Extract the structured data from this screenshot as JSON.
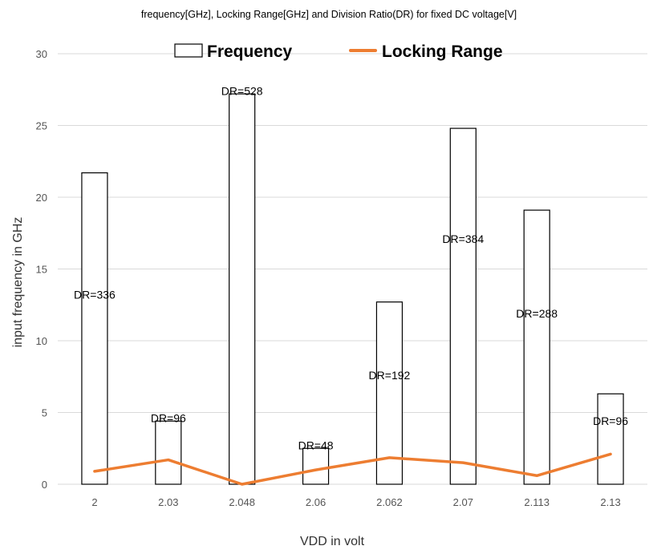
{
  "chart_data": {
    "type": "bar",
    "title": "frequency[GHz], Locking Range[GHz] and Division Ratio(DR) for fixed DC voltage[V]",
    "xlabel": "VDD in volt",
    "ylabel": "input frequency in GHz",
    "ylim": [
      0,
      30
    ],
    "yticks": [
      0,
      5,
      10,
      15,
      20,
      25,
      30
    ],
    "grid": true,
    "legend_position": "top",
    "categories": [
      "2",
      "2.03",
      "2.048",
      "2.06",
      "2.062",
      "2.07",
      "2.113",
      "2.13"
    ],
    "series": [
      {
        "name": "Frequency",
        "type": "bar",
        "values": [
          21.7,
          4.4,
          27.2,
          2.5,
          12.7,
          24.8,
          19.1,
          6.3
        ]
      },
      {
        "name": "Locking Range",
        "type": "line",
        "color": "#ed7d31",
        "values": [
          0.9,
          1.7,
          0.0,
          1.0,
          1.85,
          1.5,
          0.6,
          2.1
        ]
      }
    ],
    "annotations": [
      {
        "category": "2",
        "text": "DR=336",
        "y": 13.2
      },
      {
        "category": "2.03",
        "text": "DR=96",
        "y": 4.6
      },
      {
        "category": "2.048",
        "text": "DR=528",
        "y": 27.4
      },
      {
        "category": "2.06",
        "text": "DR=48",
        "y": 2.7
      },
      {
        "category": "2.062",
        "text": "DR=192",
        "y": 7.6
      },
      {
        "category": "2.07",
        "text": "DR=384",
        "y": 17.1
      },
      {
        "category": "2.113",
        "text": "DR=288",
        "y": 11.9
      },
      {
        "category": "2.13",
        "text": "DR=96",
        "y": 4.4
      }
    ]
  }
}
